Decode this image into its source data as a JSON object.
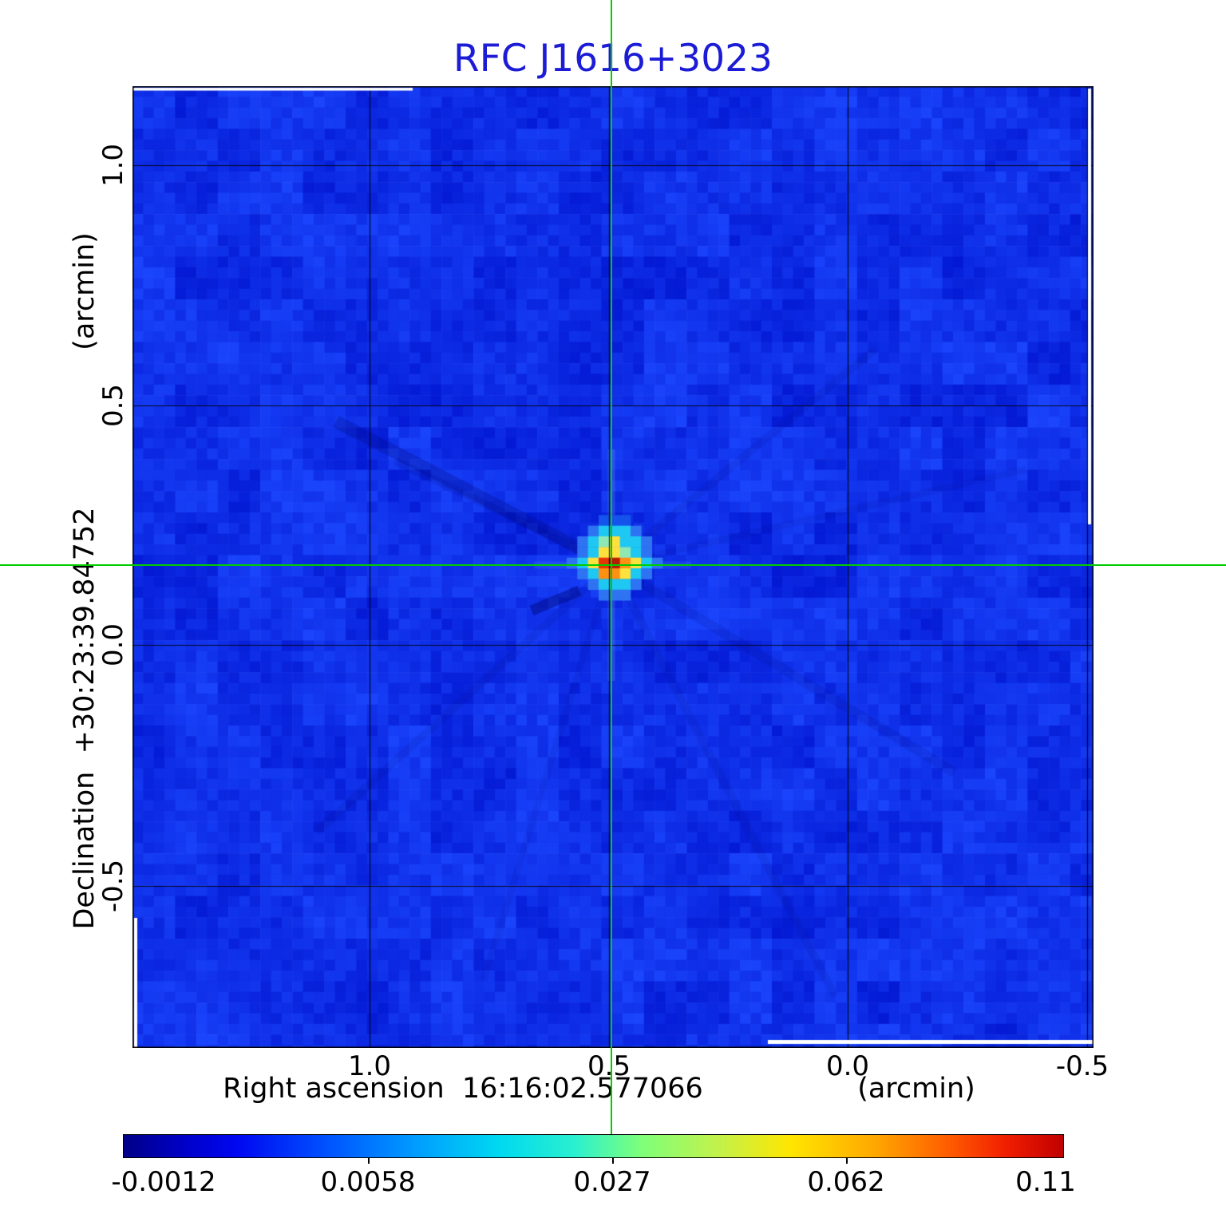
{
  "figure": {
    "title": "RFC J1616+3023",
    "title_color": "#1c1cd6",
    "background": "#ffffff"
  },
  "x_axis": {
    "axis_label": "Right ascension  16:16:02.577066",
    "unit_label": "(arcmin)",
    "ticks": [
      "1.0",
      "0.5",
      "0.0",
      "-0.5"
    ]
  },
  "y_axis": {
    "axis_label": "Declination  +30:23:39.84752",
    "unit_label": "(arcmin)",
    "ticks": [
      "1.0",
      "0.5",
      "0.0",
      "-0.5"
    ]
  },
  "crosshair": {
    "color": "#00cc00",
    "x_arcmin": 0.5,
    "y_arcmin": 0.17
  },
  "colorbar": {
    "tick_labels": [
      "-0.0012",
      "0.0058",
      "0.027",
      "0.062",
      "0.11"
    ],
    "gradient_stops": [
      "#000087 0%",
      "#0000c3 6%",
      "#0007f1 12%",
      "#0055ff 22%",
      "#009cff 31%",
      "#00d9f0 40%",
      "#2af0cf 48%",
      "#7dff7a 55%",
      "#c0f24d 63%",
      "#ffe600 71%",
      "#ffa700 80%",
      "#ff5a00 88%",
      "#f01d00 94%",
      "#c00000 100%"
    ]
  },
  "sky": {
    "base_color": "#0829e9",
    "grid_color": "#000000",
    "artifact_color": "#ffffff"
  },
  "chart_data": {
    "type": "heatmap",
    "title": "RFC J1616+3023",
    "xlabel": "Right ascension  16:16:02.577066  (arcmin)",
    "ylabel": "Declination  +30:23:39.84752  (arcmin)",
    "x_ticks_arcmin": [
      1.0,
      0.5,
      0.0,
      -0.5
    ],
    "y_ticks_arcmin": [
      1.0,
      0.5,
      0.0,
      -0.5
    ],
    "x_range_arcmin": [
      1.5,
      -0.51
    ],
    "y_range_arcmin": [
      -0.84,
      1.16
    ],
    "colormap": "jet",
    "intensity_scale_ticks": [
      -0.0012,
      0.0058,
      0.027,
      0.062,
      0.11
    ],
    "peak": {
      "x_arcmin": 0.5,
      "y_arcmin": 0.17,
      "value": 0.11
    },
    "source_palette": {
      "T": "#1453ec",
      "L": "#2e74f2",
      "C": "#1ec8f2",
      "P": "#8ee8b4",
      "Y": "#ffe13e",
      "O": "#ff9014",
      "E": "#e53505",
      "D": "#b51b00"
    },
    "source_matrix": [
      [
        ".",
        ".",
        ".",
        "T",
        "T",
        "T",
        ".",
        ".",
        "."
      ],
      [
        ".",
        ".",
        "L",
        "C",
        "C",
        "C",
        "L",
        ".",
        "."
      ],
      [
        ".",
        "L",
        "C",
        "P",
        "Y",
        "C",
        "C",
        "L",
        "."
      ],
      [
        ".",
        "L",
        "C",
        "Y",
        "Y",
        "P",
        "C",
        "L",
        "."
      ],
      [
        "L",
        "C",
        "Y",
        "E",
        "D",
        "O",
        "Y",
        "C",
        "L"
      ],
      [
        ".",
        "L",
        "C",
        "O",
        "O",
        "Y",
        "C",
        "L",
        "."
      ],
      [
        ".",
        ".",
        "L",
        "C",
        "C",
        "C",
        "L",
        ".",
        "."
      ],
      [
        ".",
        ".",
        ".",
        "L",
        "L",
        "L",
        ".",
        ".",
        "."
      ]
    ]
  }
}
